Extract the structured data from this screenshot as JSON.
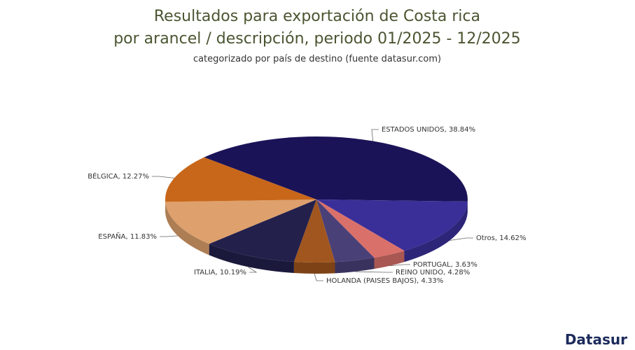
{
  "chart_data": {
    "type": "pie",
    "title": [
      "Resultados para exportación de Costa rica",
      "por arancel / descripción, periodo 01/2025 - 12/2025"
    ],
    "subtitle": "categorizado por país de destino (fuente datasur.com)",
    "categories": [
      "ESTADOS UNIDOS",
      "Otros",
      "PORTUGAL",
      "REINO UNIDO",
      "HOLANDA (PAISES BAJOS)",
      "ITALIA",
      "ESPAÑA",
      "BÉLGICA"
    ],
    "values": [
      38.84,
      14.62,
      3.63,
      4.28,
      4.33,
      10.19,
      11.83,
      12.27
    ],
    "value_labels": [
      "38.84%",
      "14.62%",
      "3.63%",
      "4.28%",
      "4.33%",
      "10.19%",
      "11.83%",
      "12.27%"
    ],
    "colors": [
      "#1b1358",
      "#3a2f98",
      "#d9706a",
      "#4a4078",
      "#a0561e",
      "#23204c",
      "#dea06c",
      "#c8671a"
    ],
    "logo": "Datasur"
  }
}
